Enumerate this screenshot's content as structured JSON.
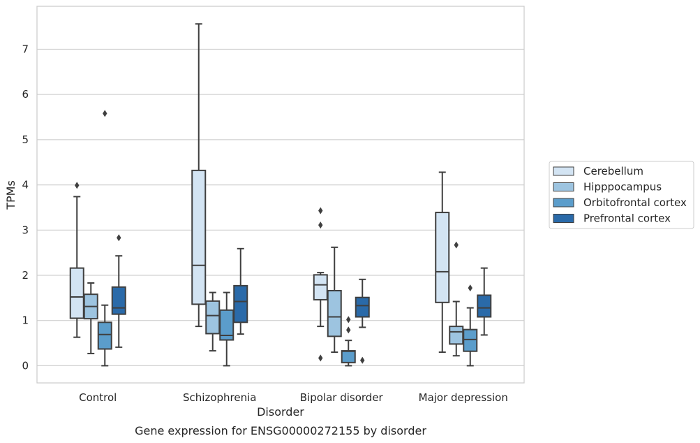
{
  "chart_data": {
    "type": "box",
    "caption": "Gene expression for ENSG00000272155 by disorder",
    "xlabel": "Disorder",
    "ylabel": "TPMs",
    "ylim": [
      -0.38,
      7.95
    ],
    "yticks": [
      0,
      1,
      2,
      3,
      4,
      5,
      6,
      7
    ],
    "grid": "horizontal",
    "legend_placement": "right",
    "categories": [
      "Control",
      "Schizophrenia",
      "Bipolar disorder",
      "Major depression"
    ],
    "series": [
      {
        "name": "Cerebellum",
        "color": "#d3e4f3",
        "boxes": [
          {
            "whislo": 0.63,
            "q1": 1.05,
            "med": 1.52,
            "q3": 2.16,
            "whishi": 3.74,
            "fliers": [
              3.99
            ]
          },
          {
            "whislo": 0.87,
            "q1": 1.36,
            "med": 2.22,
            "q3": 4.32,
            "whishi": 7.56,
            "fliers": []
          },
          {
            "whislo": 0.87,
            "q1": 1.46,
            "med": 1.79,
            "q3": 2.01,
            "whishi": 2.06,
            "fliers": [
              3.43,
              3.11,
              0.17
            ]
          },
          {
            "whislo": 0.3,
            "q1": 1.4,
            "med": 2.08,
            "q3": 3.39,
            "whishi": 4.28,
            "fliers": []
          }
        ]
      },
      {
        "name": "Hipppocampus",
        "color": "#9dc4e0",
        "boxes": [
          {
            "whislo": 0.27,
            "q1": 1.04,
            "med": 1.31,
            "q3": 1.58,
            "whishi": 1.83,
            "fliers": []
          },
          {
            "whislo": 0.33,
            "q1": 0.71,
            "med": 1.11,
            "q3": 1.43,
            "whishi": 1.62,
            "fliers": []
          },
          {
            "whislo": 0.3,
            "q1": 0.65,
            "med": 1.08,
            "q3": 1.66,
            "whishi": 2.62,
            "fliers": []
          },
          {
            "whislo": 0.22,
            "q1": 0.48,
            "med": 0.75,
            "q3": 0.87,
            "whishi": 1.42,
            "fliers": [
              2.67
            ]
          }
        ]
      },
      {
        "name": "Orbitofrontal cortex",
        "color": "#5b9dcb",
        "boxes": [
          {
            "whislo": 0.0,
            "q1": 0.37,
            "med": 0.69,
            "q3": 0.96,
            "whishi": 1.34,
            "fliers": [
              5.58
            ]
          },
          {
            "whislo": 0.0,
            "q1": 0.57,
            "med": 0.67,
            "q3": 1.23,
            "whishi": 1.62,
            "fliers": []
          },
          {
            "whislo": 0.0,
            "q1": 0.07,
            "med": 0.32,
            "q3": 0.33,
            "whishi": 0.56,
            "fliers": [
              1.02,
              0.79
            ]
          },
          {
            "whislo": 0.0,
            "q1": 0.32,
            "med": 0.58,
            "q3": 0.8,
            "whishi": 1.28,
            "fliers": [
              1.72
            ]
          }
        ]
      },
      {
        "name": "Prefrontal cortex",
        "color": "#2a6aa9",
        "boxes": [
          {
            "whislo": 0.41,
            "q1": 1.14,
            "med": 1.28,
            "q3": 1.74,
            "whishi": 2.43,
            "fliers": [
              2.83
            ]
          },
          {
            "whislo": 0.7,
            "q1": 0.96,
            "med": 1.42,
            "q3": 1.77,
            "whishi": 2.59,
            "fliers": []
          },
          {
            "whislo": 0.85,
            "q1": 1.08,
            "med": 1.33,
            "q3": 1.51,
            "whishi": 1.91,
            "fliers": [
              0.12
            ]
          },
          {
            "whislo": 0.68,
            "q1": 1.08,
            "med": 1.28,
            "q3": 1.56,
            "whishi": 2.16,
            "fliers": []
          }
        ]
      }
    ]
  }
}
